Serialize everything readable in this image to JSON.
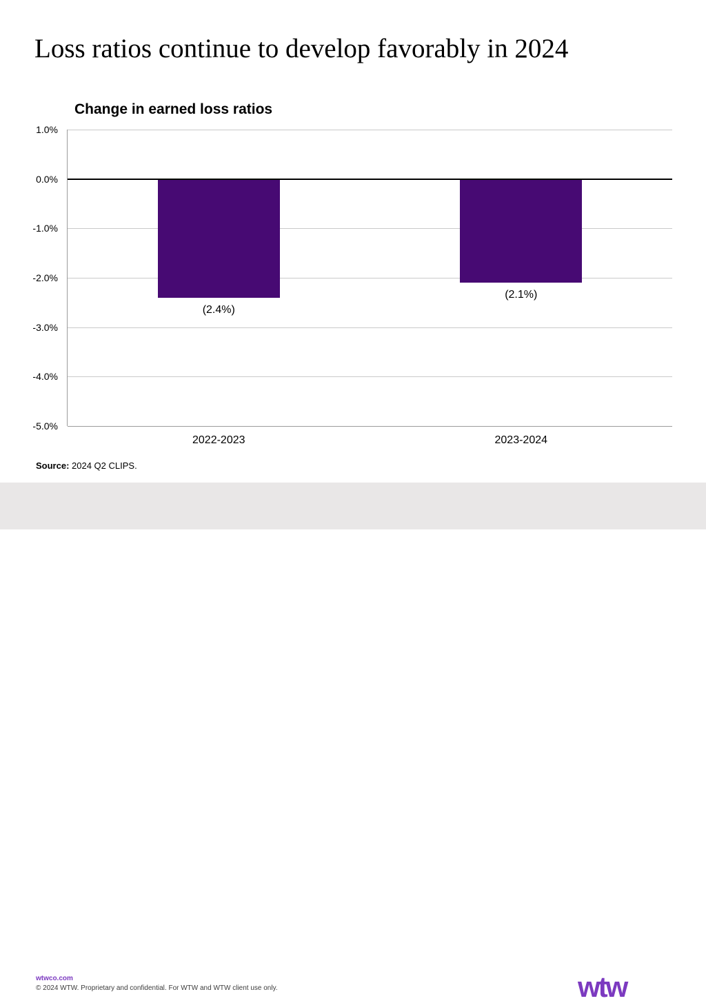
{
  "slide": {
    "title": "Loss ratios continue to develop favorably in 2024"
  },
  "chart_data": {
    "type": "bar",
    "title": "Change in earned loss ratios",
    "categories": [
      "2022-2023",
      "2023-2024"
    ],
    "values": [
      -2.4,
      -2.1
    ],
    "bar_labels": [
      "(2.4%)",
      "(2.1%)"
    ],
    "ylim": [
      1.0,
      -5.0
    ],
    "yticks": [
      {
        "value": 1.0,
        "label": "1.0%"
      },
      {
        "value": 0.0,
        "label": "0.0%"
      },
      {
        "value": -1.0,
        "label": "-1.0%"
      },
      {
        "value": -2.0,
        "label": "-2.0%"
      },
      {
        "value": -3.0,
        "label": "-3.0%"
      },
      {
        "value": -4.0,
        "label": "-4.0%"
      },
      {
        "value": -5.0,
        "label": "-5.0%"
      }
    ],
    "grid": true,
    "legend": false,
    "bar_color": "#470a73",
    "zero_line_color": "#000000",
    "gridline_color": "#c9c9c9",
    "axis_color": "#9b9b9b"
  },
  "source": {
    "label": "Source:",
    "text": " 2024 Q2 CLIPS."
  },
  "footer": {
    "url": "wtwco.com",
    "copyright": "© 2024 WTW. Proprietary and confidential. For WTW and WTW client use only.",
    "logo_text": "wtw",
    "background": "#e9e7e7",
    "accent_purple": "#7c3ac0"
  }
}
